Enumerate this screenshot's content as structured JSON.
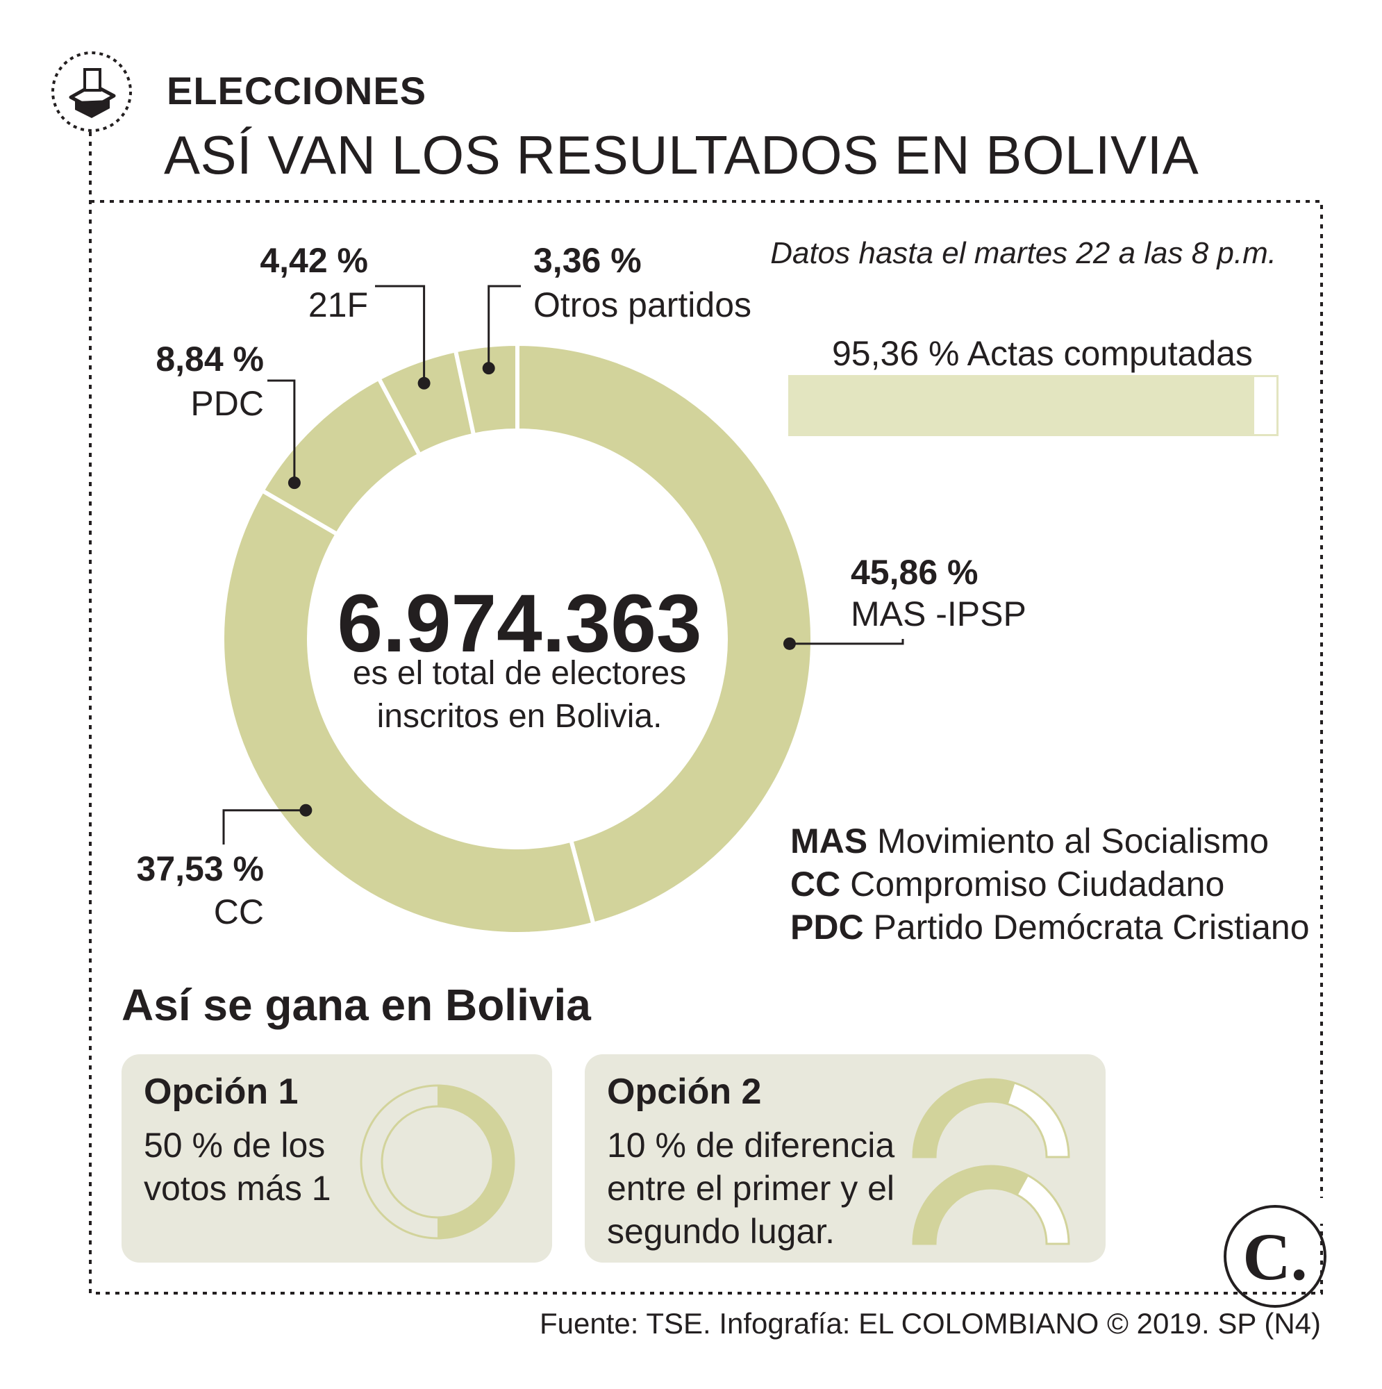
{
  "header": {
    "section": "ELECCIONES",
    "title": "ASÍ VAN LOS RESULTADOS EN BOLIVIA",
    "icon": "ballot-box-icon"
  },
  "note": "Datos hasta el martes 22 a las 8 p.m.",
  "progress": {
    "label": "95,36 % Actas computadas",
    "value": 95.36
  },
  "center": {
    "total": "6.974.363",
    "line1": "es el total de electores",
    "line2": "inscritos en Bolivia."
  },
  "labels": {
    "mas_pct": "45,86 %",
    "mas_name": "MAS -IPSP",
    "cc_pct": "37,53 %",
    "cc_name": "CC",
    "pdc_pct": "8,84 %",
    "pdc_name": "PDC",
    "f21_pct": "4,42 %",
    "f21_name": "21F",
    "otros_pct": "3,36 %",
    "otros_name": "Otros partidos"
  },
  "legend": [
    {
      "abbr": "MAS",
      "name": "Movimiento al Socialismo"
    },
    {
      "abbr": "CC",
      "name": "Compromiso Ciudadano"
    },
    {
      "abbr": "PDC",
      "name": "Partido Demócrata Cristiano"
    }
  ],
  "win": {
    "title": "Así se gana en Bolivia",
    "option1": {
      "title": "Opción 1",
      "line1": "50 % de los",
      "line2": "votos más 1",
      "value": 50
    },
    "option2": {
      "title": "Opción 2",
      "line1": "10 % de diferencia",
      "line2": "entre el primer y el",
      "line3": "segundo lugar.",
      "values": [
        40,
        30
      ]
    }
  },
  "source": "Fuente: TSE. Infografía: EL COLOMBIANO © 2019. SP (N4)",
  "logo": "C.",
  "colors": {
    "slice": "#d2d39b",
    "light": "#e3e5c0",
    "card": "#e8e8dc",
    "text": "#231f20"
  },
  "chart_data": {
    "type": "pie",
    "variant": "donut",
    "categories": [
      "MAS -IPSP",
      "CC",
      "PDC",
      "21F",
      "Otros partidos"
    ],
    "values": [
      45.86,
      37.53,
      8.84,
      4.42,
      3.36
    ],
    "labels": [
      "45,86 %",
      "37,53 %",
      "8,84 %",
      "4,42 %",
      "3,36 %"
    ],
    "order": "clockwise from top"
  }
}
